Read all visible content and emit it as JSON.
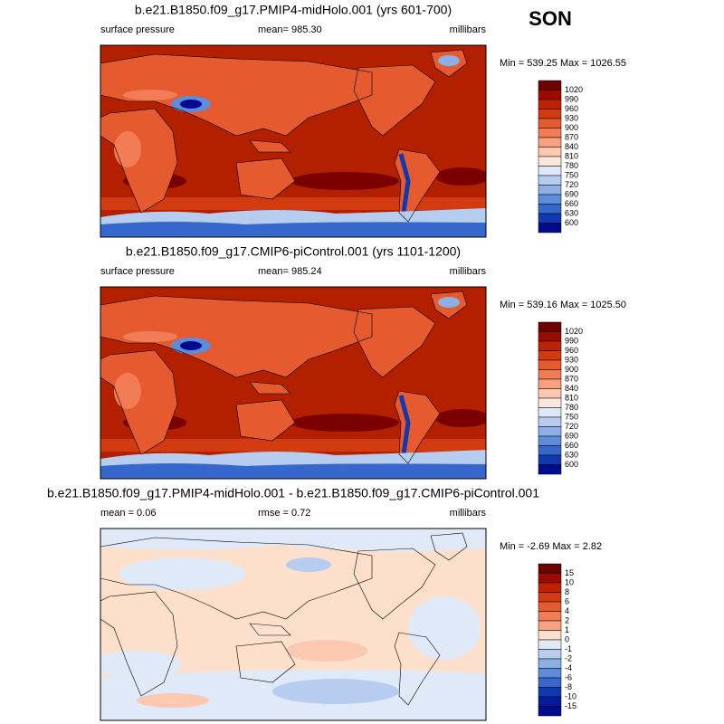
{
  "season": "SON",
  "panels": [
    {
      "title": "b.e21.B1850.f09_g17.PMIP4-midHolo.001 (yrs 601-700)",
      "left_label": "surface pressure",
      "center_label": "mean= 985.30",
      "right_label": "millibars",
      "minmax": "Min = 539.25 Max = 1026.55",
      "colorbar": {
        "labels": [
          1020,
          990,
          960,
          930,
          900,
          870,
          840,
          810,
          780,
          750,
          720,
          690,
          660,
          630,
          600
        ],
        "colors": [
          "#6e0000",
          "#9c0a00",
          "#be2200",
          "#d23a10",
          "#e65a2f",
          "#f27c55",
          "#f9a07e",
          "#fcc8b0",
          "#fbe8dc",
          "#dde8f8",
          "#b6cdf0",
          "#8cb0e6",
          "#5e8cdc",
          "#3567cc",
          "#1238b0",
          "#000c8c"
        ]
      }
    },
    {
      "title": "b.e21.B1850.f09_g17.CMIP6-piControl.001 (yrs 1101-1200)",
      "left_label": "surface pressure",
      "center_label": "mean= 985.24",
      "right_label": "millibars",
      "minmax": "Min = 539.16 Max = 1025.50",
      "colorbar": {
        "labels": [
          1020,
          990,
          960,
          930,
          900,
          870,
          840,
          810,
          780,
          750,
          720,
          690,
          660,
          630,
          600
        ],
        "colors": [
          "#6e0000",
          "#9c0a00",
          "#be2200",
          "#d23a10",
          "#e65a2f",
          "#f27c55",
          "#f9a07e",
          "#fcc8b0",
          "#fbe8dc",
          "#dde8f8",
          "#b6cdf0",
          "#8cb0e6",
          "#5e8cdc",
          "#3567cc",
          "#1238b0",
          "#000c8c"
        ]
      }
    },
    {
      "title": "b.e21.B1850.f09_g17.PMIP4-midHolo.001 - b.e21.B1850.f09_g17.CMIP6-piControl.001",
      "left_label": "mean =  0.06",
      "center_label": "rmse =  0.72",
      "right_label": "millibars",
      "minmax": "Min =  -2.69 Max =  2.82",
      "colorbar": {
        "labels": [
          15,
          10,
          8,
          6,
          4,
          2,
          1,
          0,
          -1,
          -2,
          -4,
          -6,
          -8,
          -10,
          -15
        ],
        "colors": [
          "#6e0000",
          "#9c0a00",
          "#be2200",
          "#d23a10",
          "#e65a2f",
          "#f27c55",
          "#f9a07e",
          "#fde0cc",
          "#dfe9f7",
          "#b6cdf0",
          "#8cb0e6",
          "#5e8cdc",
          "#3567cc",
          "#1238b0",
          "#041c9c",
          "#000c8c"
        ]
      }
    }
  ]
}
